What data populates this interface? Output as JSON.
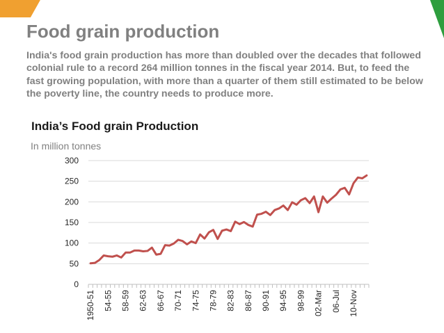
{
  "title": "Food grain production",
  "intro": "India's food grain production has more than doubled over the decades that followed colonial rule to a record 264 million tonnes in the fiscal year 2014. But, to feed the fast growing population, with more than a quarter of them still estimated to be below the poverty line, the country needs to produce more.",
  "colors": {
    "corner_orange": "#f0a030",
    "corner_green": "#2e9e3e",
    "line": "#c0504d",
    "title_gray": "#808080"
  },
  "chart_data": {
    "type": "line",
    "title": "India’s Food grain Production",
    "subtitle": "In million tonnes",
    "ylim": [
      0,
      300
    ],
    "yticks": [
      "0",
      "50",
      "100",
      "150",
      "200",
      "250",
      "300"
    ],
    "xtick_labels": [
      "1950-51",
      "54-55",
      "58-59",
      "62-63",
      "66-67",
      "70-71",
      "74-75",
      "78-79",
      "82-83",
      "86-87",
      "90-91",
      "94-95",
      "98-99",
      "02-Mar",
      "06-Jul",
      "10-Nov"
    ],
    "grid": "horizontal",
    "legend": "none",
    "series": [
      {
        "values": [
          51,
          52,
          59,
          70,
          68,
          67,
          70,
          65,
          77,
          77,
          82,
          82,
          80,
          81,
          89,
          72,
          74,
          95,
          94,
          99,
          108,
          105,
          97,
          104,
          100,
          121,
          111,
          126,
          132,
          110,
          130,
          133,
          129,
          152,
          146,
          151,
          144,
          140,
          169,
          171,
          176,
          168,
          180,
          184,
          191,
          180,
          199,
          193,
          204,
          209,
          197,
          213,
          175,
          213,
          198,
          208,
          217,
          230,
          234,
          218,
          245,
          259,
          257,
          264
        ]
      }
    ]
  }
}
